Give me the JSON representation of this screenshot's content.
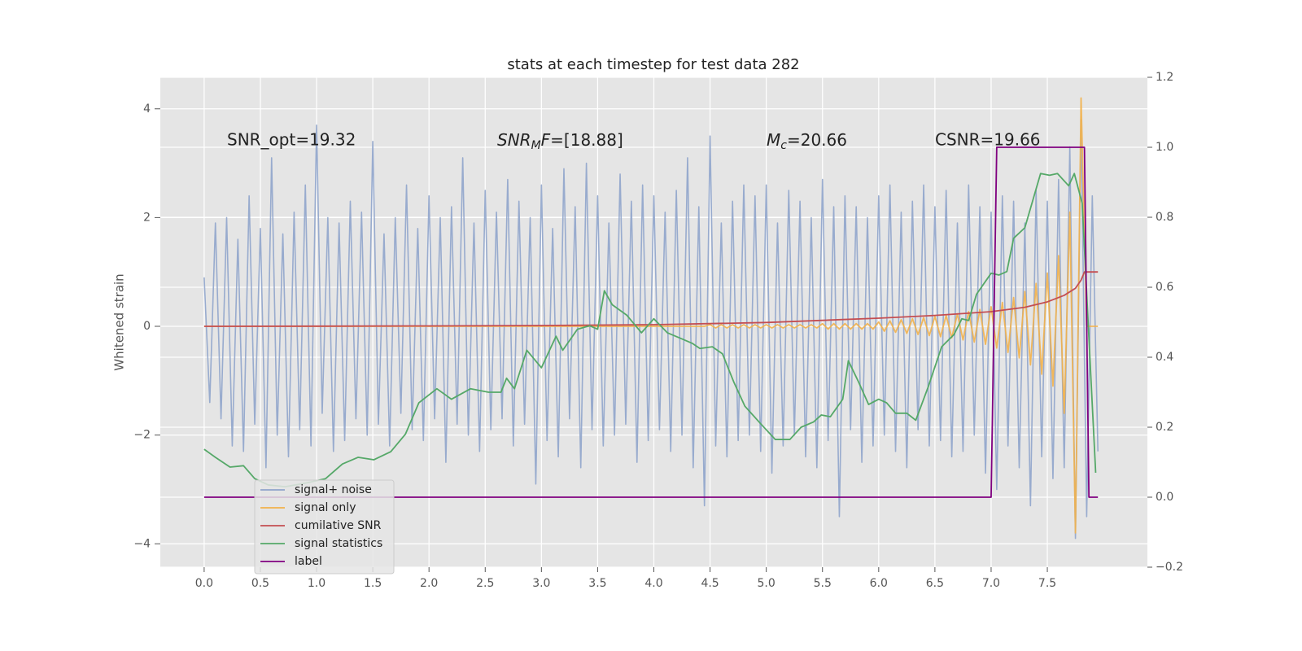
{
  "chart_data": {
    "type": "line",
    "title": "stats at each timestep for test data 282",
    "ylabel": "Whitened strain",
    "xlim": [
      -0.39,
      8.39
    ],
    "ylim": [
      -4.43,
      4.58
    ],
    "y2lim": [
      -0.2,
      1.2
    ],
    "xticks": [
      {
        "value": 0,
        "label": "0.0"
      },
      0.5,
      {
        "value": 1,
        "label": "1.0"
      },
      1.5,
      {
        "value": 2,
        "label": "2.0"
      },
      2.5,
      {
        "value": 3,
        "label": "3.0"
      },
      3.5,
      {
        "value": 4,
        "label": "4.0"
      },
      4.5,
      {
        "value": 5,
        "label": "5.0"
      },
      5.5,
      {
        "value": 6,
        "label": "6.0"
      },
      6.5,
      {
        "value": 7,
        "label": "7.0"
      },
      7.5
    ],
    "yticks": [
      {
        "value": -4,
        "label": "−4"
      },
      {
        "value": -2,
        "label": "−2"
      },
      0,
      2,
      4
    ],
    "y2ticks": [
      {
        "value": -0.2,
        "label": "−0.2"
      },
      {
        "value": 0,
        "label": "0.0"
      },
      0.2,
      0.4,
      0.6,
      0.8,
      {
        "value": 1,
        "label": "1.0"
      },
      1.2
    ],
    "grid": true,
    "legend": "lower left",
    "annotations": [
      {
        "text": "SNR_opt=19.32"
      },
      {
        "parts": [
          "SNR",
          "M",
          "F",
          "=[18.88]"
        ]
      },
      {
        "parts": [
          "M",
          "c",
          "=20.66"
        ]
      },
      {
        "text": "CSNR=19.66"
      }
    ],
    "x": [
      0,
      0.05,
      0.1,
      0.15,
      0.2,
      0.25,
      0.3,
      0.35,
      0.4,
      0.45,
      0.5,
      0.55,
      0.6,
      0.65,
      0.7,
      0.75,
      0.8,
      0.85,
      0.9,
      0.95,
      1,
      1.05,
      1.1,
      1.15,
      1.2,
      1.25,
      1.3,
      1.35,
      1.4,
      1.45,
      1.5,
      1.55,
      1.6,
      1.65,
      1.7,
      1.75,
      1.8,
      1.85,
      1.9,
      1.95,
      2,
      2.05,
      2.1,
      2.15,
      2.2,
      2.25,
      2.3,
      2.35,
      2.4,
      2.45,
      2.5,
      2.55,
      2.6,
      2.65,
      2.7,
      2.75,
      2.8,
      2.85,
      2.9,
      2.95,
      3,
      3.05,
      3.1,
      3.15,
      3.2,
      3.25,
      3.3,
      3.35,
      3.4,
      3.45,
      3.5,
      3.55,
      3.6,
      3.65,
      3.7,
      3.75,
      3.8,
      3.85,
      3.9,
      3.95,
      4,
      4.05,
      4.1,
      4.15,
      4.2,
      4.25,
      4.3,
      4.35,
      4.4,
      4.45,
      4.5,
      4.55,
      4.6,
      4.65,
      4.7,
      4.75,
      4.8,
      4.85,
      4.9,
      4.95,
      5,
      5.05,
      5.1,
      5.15,
      5.2,
      5.25,
      5.3,
      5.35,
      5.4,
      5.45,
      5.5,
      5.55,
      5.6,
      5.65,
      5.7,
      5.75,
      5.8,
      5.85,
      5.9,
      5.95,
      6,
      6.05,
      6.1,
      6.15,
      6.2,
      6.25,
      6.3,
      6.35,
      6.4,
      6.45,
      6.5,
      6.55,
      6.6,
      6.65,
      6.7,
      6.75,
      6.8,
      6.85,
      6.9,
      6.95,
      7,
      7.05,
      7.1,
      7.15,
      7.2,
      7.25,
      7.3,
      7.35,
      7.4,
      7.45,
      7.5,
      7.55,
      7.6,
      7.65,
      7.7,
      7.75,
      7.8,
      7.85,
      7.9,
      7.95
    ],
    "series": [
      {
        "name": "signal+ noise",
        "color": "#8fa4cb",
        "values": [
          0.9,
          -1.4,
          1.9,
          -1.7,
          2.0,
          -2.2,
          1.6,
          -2.3,
          2.4,
          -1.8,
          1.8,
          -2.6,
          3.1,
          -2.0,
          1.7,
          -2.4,
          2.1,
          -1.9,
          2.6,
          -2.2,
          3.7,
          -1.6,
          2.0,
          -2.3,
          1.9,
          -2.1,
          2.3,
          -1.7,
          2.1,
          -2.0,
          3.4,
          -1.8,
          1.7,
          -2.2,
          2.0,
          -1.6,
          2.6,
          -1.9,
          1.8,
          -2.1,
          2.4,
          -1.7,
          2.0,
          -2.5,
          2.2,
          -1.8,
          3.1,
          -2.0,
          1.9,
          -2.3,
          2.5,
          -1.9,
          2.1,
          -1.7,
          2.7,
          -2.2,
          2.3,
          -1.8,
          2.0,
          -2.9,
          2.6,
          -2.1,
          1.8,
          -2.4,
          2.9,
          -1.7,
          2.2,
          -2.6,
          3.0,
          -1.9,
          2.4,
          -2.2,
          1.9,
          -2.0,
          2.8,
          -1.8,
          2.3,
          -2.5,
          2.6,
          -2.1,
          2.4,
          -1.9,
          2.1,
          -2.3,
          2.5,
          -2.0,
          3.1,
          -2.6,
          2.2,
          -3.3,
          3.5,
          -2.2,
          1.9,
          -2.4,
          2.3,
          -2.1,
          2.6,
          -2.0,
          2.4,
          -2.3,
          2.6,
          -2.7,
          1.9,
          -2.2,
          2.5,
          -2.0,
          2.3,
          -2.4,
          2.0,
          -2.6,
          2.7,
          -2.1,
          2.2,
          -3.5,
          2.4,
          -1.9,
          2.2,
          -2.5,
          2.0,
          -2.2,
          2.4,
          -2.0,
          2.6,
          -2.3,
          2.1,
          -2.6,
          2.3,
          -1.9,
          2.6,
          -2.2,
          2.2,
          -2.1,
          2.5,
          -2.4,
          1.9,
          -2.3,
          2.6,
          -2.0,
          2.2,
          -2.7,
          2.1,
          -3.0,
          2.4,
          -2.2,
          2.3,
          -2.6,
          1.9,
          -3.3,
          2.5,
          -2.4,
          2.3,
          -2.8,
          2.7,
          -2.6,
          3.3,
          -3.9,
          3.8,
          -3.5,
          2.4,
          -2.3
        ]
      },
      {
        "name": "signal only",
        "color": "#f2b14b",
        "x": [
          0,
          4.45,
          4.5,
          4.55,
          4.6,
          4.65,
          4.7,
          4.75,
          4.8,
          4.85,
          4.9,
          4.95,
          5,
          5.05,
          5.1,
          5.15,
          5.2,
          5.25,
          5.3,
          5.35,
          5.4,
          5.45,
          5.5,
          5.55,
          5.6,
          5.65,
          5.7,
          5.75,
          5.8,
          5.85,
          5.9,
          5.95,
          6,
          6.05,
          6.1,
          6.15,
          6.2,
          6.25,
          6.3,
          6.35,
          6.4,
          6.45,
          6.5,
          6.55,
          6.6,
          6.65,
          6.7,
          6.75,
          6.8,
          6.85,
          6.9,
          6.95,
          7,
          7.05,
          7.1,
          7.15,
          7.2,
          7.25,
          7.3,
          7.35,
          7.4,
          7.45,
          7.5,
          7.55,
          7.6,
          7.65,
          7.7,
          7.75,
          7.8,
          7.85,
          7.9,
          7.95
        ],
        "values": [
          0,
          0,
          0.03,
          -0.03,
          0.03,
          -0.03,
          0.03,
          -0.03,
          0.03,
          -0.03,
          0.03,
          -0.03,
          0.03,
          -0.03,
          0.03,
          -0.03,
          0.03,
          -0.03,
          0.03,
          -0.03,
          0.03,
          -0.03,
          0.05,
          -0.05,
          0.05,
          -0.05,
          0.05,
          -0.05,
          0.05,
          -0.05,
          0.05,
          -0.05,
          0.08,
          -0.09,
          0.1,
          -0.11,
          0.12,
          -0.13,
          0.14,
          -0.15,
          0.16,
          -0.17,
          0.18,
          -0.19,
          0.2,
          -0.21,
          0.23,
          -0.25,
          0.27,
          -0.29,
          0.31,
          -0.33,
          0.36,
          -0.4,
          0.44,
          -0.48,
          0.53,
          -0.58,
          0.64,
          -0.71,
          0.79,
          -0.88,
          0.98,
          -1.1,
          1.3,
          -1.6,
          2.1,
          -3.8,
          4.2,
          0,
          0,
          0
        ]
      },
      {
        "name": "cumilative SNR",
        "color": "#c44e52",
        "x": [
          0,
          1,
          2,
          3,
          4,
          5,
          6,
          6.5,
          7,
          7.3,
          7.5,
          7.65,
          7.75,
          7.8,
          7.82,
          7.83,
          7.95
        ],
        "values": [
          0,
          0.003,
          0.008,
          0.015,
          0.03,
          0.07,
          0.15,
          0.2,
          0.27,
          0.35,
          0.45,
          0.57,
          0.7,
          0.85,
          0.95,
          1.0,
          1.0
        ]
      },
      {
        "name": "signal statistics",
        "color": "#55a868",
        "axis": "y2",
        "x": [
          0,
          0.1,
          0.23,
          0.35,
          0.45,
          0.57,
          0.72,
          0.9,
          1.08,
          1.23,
          1.37,
          1.51,
          1.66,
          1.79,
          1.91,
          2.07,
          2.2,
          2.37,
          2.53,
          2.64,
          2.69,
          2.76,
          2.87,
          3.0,
          3.13,
          3.19,
          3.32,
          3.43,
          3.5,
          3.56,
          3.63,
          3.76,
          3.89,
          4.0,
          4.12,
          4.23,
          4.34,
          4.41,
          4.52,
          4.61,
          4.71,
          4.81,
          4.95,
          5.08,
          5.21,
          5.31,
          5.42,
          5.49,
          5.57,
          5.68,
          5.73,
          5.82,
          5.91,
          6.0,
          6.07,
          6.15,
          6.25,
          6.33,
          6.44,
          6.56,
          6.67,
          6.74,
          6.8,
          6.87,
          7.0,
          7.07,
          7.14,
          7.2,
          7.3,
          7.44,
          7.52,
          7.59,
          7.69,
          7.74,
          7.81,
          7.93
        ],
        "values": [
          0.137,
          0.114,
          0.086,
          0.09,
          0.053,
          0.035,
          0.03,
          0.04,
          0.053,
          0.095,
          0.114,
          0.107,
          0.13,
          0.18,
          0.27,
          0.31,
          0.28,
          0.31,
          0.3,
          0.3,
          0.34,
          0.31,
          0.42,
          0.37,
          0.46,
          0.42,
          0.48,
          0.49,
          0.48,
          0.59,
          0.55,
          0.52,
          0.47,
          0.51,
          0.47,
          0.455,
          0.44,
          0.425,
          0.43,
          0.41,
          0.33,
          0.26,
          0.21,
          0.165,
          0.165,
          0.2,
          0.215,
          0.235,
          0.23,
          0.28,
          0.39,
          0.33,
          0.265,
          0.28,
          0.27,
          0.24,
          0.24,
          0.22,
          0.315,
          0.43,
          0.465,
          0.51,
          0.505,
          0.58,
          0.64,
          0.635,
          0.645,
          0.74,
          0.77,
          0.925,
          0.92,
          0.925,
          0.89,
          0.925,
          0.84,
          0.07
        ]
      },
      {
        "name": "label",
        "color": "#800080",
        "axis": "y2",
        "x": [
          0,
          7.0,
          7.05,
          7.83,
          7.87,
          7.95
        ],
        "values": [
          0,
          0,
          1,
          1,
          0,
          0
        ]
      }
    ]
  }
}
